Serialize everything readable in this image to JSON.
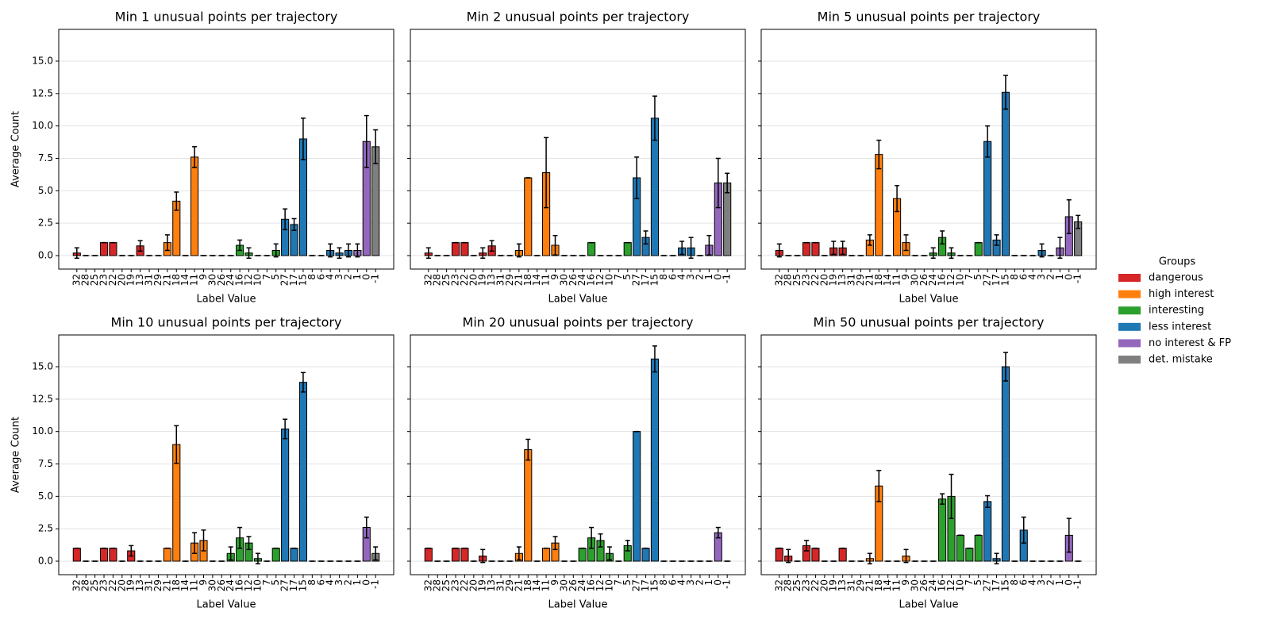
{
  "chart_data": [
    {
      "type": "bar",
      "title": "Min 1 unusual points per trajectory",
      "xlabel": "Label Value",
      "ylabel": "Average Count",
      "categories": [
        "32",
        "28",
        "25",
        "23",
        "22",
        "20",
        "19",
        "13",
        "31",
        "29",
        "21",
        "18",
        "14",
        "11",
        "9",
        "30",
        "26",
        "24",
        "16",
        "12",
        "10",
        "7",
        "5",
        "27",
        "17",
        "15",
        "8",
        "6",
        "4",
        "3",
        "2",
        "1",
        "0",
        "-1"
      ],
      "values": [
        0.2,
        0,
        0,
        1,
        1,
        0,
        0,
        0.75,
        0,
        0,
        1,
        4.2,
        0,
        7.6,
        0,
        0,
        0,
        0,
        0.8,
        0.2,
        0,
        0,
        0.4,
        2.8,
        2.4,
        9.0,
        0,
        0,
        0.4,
        0.2,
        0.4,
        0.4,
        8.8,
        8.4
      ],
      "errors": [
        0.4,
        0,
        0,
        0,
        0,
        0,
        0,
        0.4,
        0,
        0,
        0.6,
        0.7,
        0,
        0.8,
        0,
        0,
        0,
        0,
        0.4,
        0.4,
        0,
        0,
        0.5,
        0.8,
        0.45,
        1.6,
        0,
        0,
        0.5,
        0.4,
        0.5,
        0.5,
        2.0,
        1.3
      ],
      "colors": [
        "#d62728",
        "#d62728",
        "#d62728",
        "#d62728",
        "#d62728",
        "#d62728",
        "#d62728",
        "#d62728",
        "#ff7f0e",
        "#ff7f0e",
        "#ff7f0e",
        "#ff7f0e",
        "#ff7f0e",
        "#ff7f0e",
        "#ff7f0e",
        "#2ca02c",
        "#2ca02c",
        "#2ca02c",
        "#2ca02c",
        "#2ca02c",
        "#2ca02c",
        "#2ca02c",
        "#2ca02c",
        "#1f77b4",
        "#1f77b4",
        "#1f77b4",
        "#1f77b4",
        "#1f77b4",
        "#1f77b4",
        "#1f77b4",
        "#1f77b4",
        "#9467bd",
        "#9467bd",
        "#7f7f7f"
      ],
      "ylim": [
        -1.04,
        17.45
      ],
      "yticks": [
        {
          "value": 0,
          "label": "0.0"
        },
        2.5,
        {
          "value": 5,
          "label": "5.0"
        },
        7.5,
        {
          "value": 10,
          "label": "10.0"
        },
        12.5,
        {
          "value": 15,
          "label": "15.0"
        }
      ],
      "grid": true
    },
    {
      "type": "bar",
      "title": "Min 2 unusual points per trajectory",
      "xlabel": "Label Value",
      "categories": [
        "32",
        "28",
        "25",
        "23",
        "22",
        "20",
        "19",
        "13",
        "31",
        "29",
        "21",
        "18",
        "14",
        "11",
        "9",
        "30",
        "26",
        "24",
        "16",
        "12",
        "10",
        "7",
        "5",
        "27",
        "17",
        "15",
        "8",
        "6",
        "4",
        "3",
        "2",
        "1",
        "0",
        "-1"
      ],
      "values": [
        0.2,
        0,
        0,
        1,
        1,
        0,
        0.2,
        0.75,
        0,
        0,
        0.4,
        6.0,
        0,
        6.4,
        0.8,
        0,
        0,
        0,
        1,
        0,
        0,
        0,
        1,
        6.0,
        1.4,
        10.6,
        0,
        0,
        0.6,
        0.6,
        0,
        0.8,
        5.6,
        5.6
      ],
      "errors": [
        0.4,
        0,
        0,
        0,
        0,
        0,
        0.4,
        0.4,
        0,
        0,
        0.5,
        0,
        0,
        2.7,
        0.75,
        0,
        0,
        0,
        0,
        0,
        0,
        0,
        0,
        1.6,
        0.5,
        1.7,
        0,
        0,
        0.5,
        0.8,
        0,
        0.75,
        1.9,
        0.75
      ],
      "colors": [
        "#d62728",
        "#d62728",
        "#d62728",
        "#d62728",
        "#d62728",
        "#d62728",
        "#d62728",
        "#d62728",
        "#ff7f0e",
        "#ff7f0e",
        "#ff7f0e",
        "#ff7f0e",
        "#ff7f0e",
        "#ff7f0e",
        "#ff7f0e",
        "#2ca02c",
        "#2ca02c",
        "#2ca02c",
        "#2ca02c",
        "#2ca02c",
        "#2ca02c",
        "#2ca02c",
        "#2ca02c",
        "#1f77b4",
        "#1f77b4",
        "#1f77b4",
        "#1f77b4",
        "#1f77b4",
        "#1f77b4",
        "#1f77b4",
        "#1f77b4",
        "#9467bd",
        "#9467bd",
        "#7f7f7f"
      ],
      "ylim": [
        -1.04,
        17.45
      ],
      "yticks": [
        0,
        2.5,
        5,
        7.5,
        10,
        12.5,
        15
      ],
      "grid": true
    },
    {
      "type": "bar",
      "title": "Min 5 unusual points per trajectory",
      "xlabel": "Label Value",
      "categories": [
        "32",
        "28",
        "25",
        "23",
        "22",
        "20",
        "19",
        "13",
        "31",
        "29",
        "21",
        "18",
        "14",
        "11",
        "9",
        "30",
        "26",
        "24",
        "16",
        "12",
        "10",
        "7",
        "5",
        "27",
        "17",
        "15",
        "8",
        "6",
        "4",
        "3",
        "2",
        "1",
        "0",
        "-1"
      ],
      "values": [
        0.4,
        0,
        0,
        1,
        1,
        0,
        0.6,
        0.6,
        0,
        0,
        1.2,
        7.8,
        0,
        4.4,
        1.0,
        0,
        0,
        0.2,
        1.4,
        0.2,
        0,
        0,
        1,
        8.8,
        1.2,
        12.6,
        0,
        0,
        0,
        0.4,
        0,
        0.6,
        3.0,
        2.6
      ],
      "errors": [
        0.5,
        0,
        0,
        0,
        0,
        0,
        0.5,
        0.5,
        0,
        0,
        0.4,
        1.1,
        0,
        1.0,
        0.6,
        0,
        0,
        0.4,
        0.5,
        0.4,
        0,
        0,
        0,
        1.2,
        0.4,
        1.3,
        0,
        0,
        0,
        0.5,
        0,
        0.8,
        1.3,
        0.5
      ],
      "colors": [
        "#d62728",
        "#d62728",
        "#d62728",
        "#d62728",
        "#d62728",
        "#d62728",
        "#d62728",
        "#d62728",
        "#ff7f0e",
        "#ff7f0e",
        "#ff7f0e",
        "#ff7f0e",
        "#ff7f0e",
        "#ff7f0e",
        "#ff7f0e",
        "#2ca02c",
        "#2ca02c",
        "#2ca02c",
        "#2ca02c",
        "#2ca02c",
        "#2ca02c",
        "#2ca02c",
        "#2ca02c",
        "#1f77b4",
        "#1f77b4",
        "#1f77b4",
        "#1f77b4",
        "#1f77b4",
        "#1f77b4",
        "#1f77b4",
        "#1f77b4",
        "#9467bd",
        "#9467bd",
        "#7f7f7f"
      ],
      "ylim": [
        -1.04,
        17.45
      ],
      "yticks": [
        0,
        2.5,
        5,
        7.5,
        10,
        12.5,
        15
      ],
      "grid": true
    },
    {
      "type": "bar",
      "title": "Min 10 unusual points per trajectory",
      "xlabel": "Label Value",
      "ylabel": "Average Count",
      "categories": [
        "32",
        "28",
        "25",
        "23",
        "22",
        "20",
        "19",
        "13",
        "31",
        "29",
        "21",
        "18",
        "14",
        "11",
        "9",
        "30",
        "26",
        "24",
        "16",
        "12",
        "10",
        "7",
        "5",
        "27",
        "17",
        "15",
        "8",
        "6",
        "4",
        "3",
        "2",
        "1",
        "0",
        "-1"
      ],
      "values": [
        1,
        0,
        0,
        1,
        1,
        0,
        0.8,
        0,
        0,
        0,
        1,
        9.0,
        0,
        1.4,
        1.6,
        0,
        0,
        0.6,
        1.8,
        1.4,
        0.2,
        0,
        1,
        10.2,
        1,
        13.8,
        0,
        0,
        0,
        0,
        0,
        0,
        2.6,
        0.6
      ],
      "errors": [
        0,
        0,
        0,
        0,
        0,
        0,
        0.4,
        0,
        0,
        0,
        0,
        1.45,
        0,
        0.8,
        0.8,
        0,
        0,
        0.5,
        0.8,
        0.5,
        0.4,
        0,
        0,
        0.75,
        0,
        0.75,
        0,
        0,
        0,
        0,
        0,
        0,
        0.8,
        0.5
      ],
      "colors": [
        "#d62728",
        "#d62728",
        "#d62728",
        "#d62728",
        "#d62728",
        "#d62728",
        "#d62728",
        "#d62728",
        "#ff7f0e",
        "#ff7f0e",
        "#ff7f0e",
        "#ff7f0e",
        "#ff7f0e",
        "#ff7f0e",
        "#ff7f0e",
        "#2ca02c",
        "#2ca02c",
        "#2ca02c",
        "#2ca02c",
        "#2ca02c",
        "#2ca02c",
        "#2ca02c",
        "#2ca02c",
        "#1f77b4",
        "#1f77b4",
        "#1f77b4",
        "#1f77b4",
        "#1f77b4",
        "#1f77b4",
        "#1f77b4",
        "#1f77b4",
        "#9467bd",
        "#9467bd",
        "#7f7f7f"
      ],
      "ylim": [
        -1.04,
        17.45
      ],
      "yticks": [
        {
          "value": 0,
          "label": "0.0"
        },
        2.5,
        {
          "value": 5,
          "label": "5.0"
        },
        7.5,
        {
          "value": 10,
          "label": "10.0"
        },
        12.5,
        {
          "value": 15,
          "label": "15.0"
        }
      ],
      "grid": true
    },
    {
      "type": "bar",
      "title": "Min 20 unusual points per trajectory",
      "xlabel": "Label Value",
      "categories": [
        "32",
        "28",
        "25",
        "23",
        "22",
        "20",
        "19",
        "13",
        "31",
        "29",
        "21",
        "18",
        "14",
        "11",
        "9",
        "30",
        "26",
        "24",
        "16",
        "12",
        "10",
        "7",
        "5",
        "27",
        "17",
        "15",
        "8",
        "6",
        "4",
        "3",
        "2",
        "1",
        "0",
        "-1"
      ],
      "values": [
        1,
        0,
        0,
        1,
        1,
        0,
        0.4,
        0,
        0,
        0,
        0.6,
        8.6,
        0,
        1,
        1.4,
        0,
        0,
        1,
        1.8,
        1.6,
        0.6,
        0,
        1.2,
        10,
        1,
        15.6,
        0,
        0,
        0,
        0,
        0,
        0,
        2.2,
        0
      ],
      "errors": [
        0,
        0,
        0,
        0,
        0,
        0,
        0.5,
        0,
        0,
        0,
        0.5,
        0.8,
        0,
        0,
        0.5,
        0,
        0,
        0,
        0.8,
        0.5,
        0.5,
        0,
        0.4,
        0,
        0,
        1.0,
        0,
        0,
        0,
        0,
        0,
        0,
        0.4,
        0
      ],
      "colors": [
        "#d62728",
        "#d62728",
        "#d62728",
        "#d62728",
        "#d62728",
        "#d62728",
        "#d62728",
        "#d62728",
        "#ff7f0e",
        "#ff7f0e",
        "#ff7f0e",
        "#ff7f0e",
        "#ff7f0e",
        "#ff7f0e",
        "#ff7f0e",
        "#2ca02c",
        "#2ca02c",
        "#2ca02c",
        "#2ca02c",
        "#2ca02c",
        "#2ca02c",
        "#2ca02c",
        "#2ca02c",
        "#1f77b4",
        "#1f77b4",
        "#1f77b4",
        "#1f77b4",
        "#1f77b4",
        "#1f77b4",
        "#1f77b4",
        "#1f77b4",
        "#9467bd",
        "#9467bd",
        "#7f7f7f"
      ],
      "ylim": [
        -1.04,
        17.45
      ],
      "yticks": [
        0,
        2.5,
        5,
        7.5,
        10,
        12.5,
        15
      ],
      "grid": true
    },
    {
      "type": "bar",
      "title": "Min 50 unusual points per trajectory",
      "xlabel": "Label Value",
      "categories": [
        "32",
        "28",
        "25",
        "23",
        "22",
        "20",
        "19",
        "13",
        "31",
        "29",
        "21",
        "18",
        "14",
        "11",
        "9",
        "30",
        "26",
        "24",
        "16",
        "12",
        "10",
        "7",
        "5",
        "27",
        "17",
        "15",
        "8",
        "6",
        "4",
        "3",
        "2",
        "1",
        "0",
        "-1"
      ],
      "values": [
        1,
        0.4,
        0,
        1.2,
        1,
        0,
        0,
        1,
        0,
        0,
        0.2,
        5.8,
        0,
        0,
        0.4,
        0,
        0,
        0,
        4.8,
        5.0,
        2.0,
        1.0,
        2.0,
        4.6,
        0.2,
        15.0,
        0,
        2.4,
        0,
        0,
        0,
        0,
        2.0,
        0
      ],
      "errors": [
        0,
        0.5,
        0,
        0.4,
        0,
        0,
        0,
        0,
        0,
        0,
        0.4,
        1.2,
        0,
        0,
        0.5,
        0,
        0,
        0,
        0.4,
        1.7,
        0,
        0,
        0,
        0.45,
        0.4,
        1.1,
        0,
        1.0,
        0,
        0,
        0,
        0,
        1.3,
        0
      ],
      "colors": [
        "#d62728",
        "#d62728",
        "#d62728",
        "#d62728",
        "#d62728",
        "#d62728",
        "#d62728",
        "#d62728",
        "#ff7f0e",
        "#ff7f0e",
        "#ff7f0e",
        "#ff7f0e",
        "#ff7f0e",
        "#ff7f0e",
        "#ff7f0e",
        "#2ca02c",
        "#2ca02c",
        "#2ca02c",
        "#2ca02c",
        "#2ca02c",
        "#2ca02c",
        "#2ca02c",
        "#2ca02c",
        "#1f77b4",
        "#1f77b4",
        "#1f77b4",
        "#1f77b4",
        "#1f77b4",
        "#1f77b4",
        "#1f77b4",
        "#1f77b4",
        "#9467bd",
        "#9467bd",
        "#7f7f7f"
      ],
      "ylim": [
        -1.04,
        17.45
      ],
      "yticks": [
        0,
        2.5,
        5,
        7.5,
        10,
        12.5,
        15
      ],
      "grid": true
    }
  ],
  "legend": {
    "title": "Groups",
    "entries": [
      {
        "name": "dangerous",
        "color": "#d62728"
      },
      {
        "name": "high interest",
        "color": "#ff7f0e"
      },
      {
        "name": "interesting",
        "color": "#2ca02c"
      },
      {
        "name": "less interest",
        "color": "#1f77b4"
      },
      {
        "name": "no interest & FP",
        "color": "#9467bd"
      },
      {
        "name": "det. mistake",
        "color": "#7f7f7f"
      }
    ]
  }
}
